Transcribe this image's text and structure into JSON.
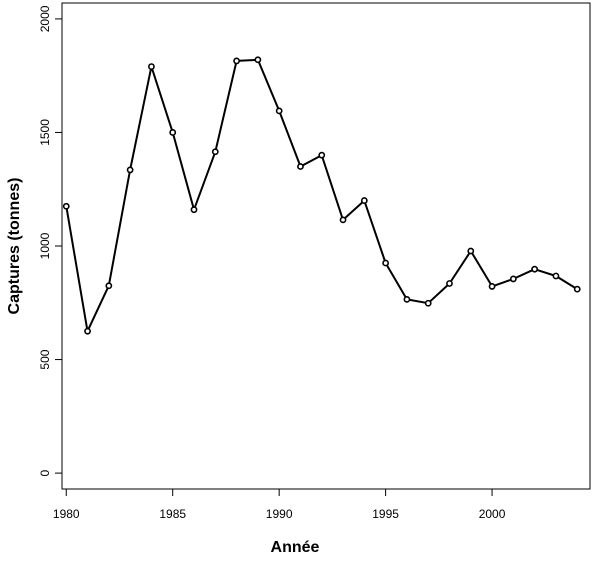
{
  "chart_data": {
    "type": "line",
    "title": "",
    "xlabel": "Année",
    "ylabel": "Captures (tonnes)",
    "xlim": [
      1979.8,
      2004.6
    ],
    "ylim": [
      -70,
      2070
    ],
    "x_ticks": [
      1980,
      1985,
      1990,
      1995,
      2000
    ],
    "y_ticks": [
      0,
      500,
      1000,
      1500,
      2000
    ],
    "grid": false,
    "legend": "none",
    "line_color": "#000000",
    "series": [
      {
        "x": [
          1980,
          1981,
          1982,
          1983,
          1984,
          1985,
          1986,
          1987,
          1988,
          1989,
          1990,
          1991,
          1992,
          1993,
          1994,
          1995,
          1996,
          1997,
          1998,
          1999,
          2000,
          2001,
          2002,
          2003,
          2004
        ],
        "values": [
          1175,
          625,
          825,
          1335,
          1790,
          1500,
          1160,
          1415,
          1815,
          1820,
          1595,
          1350,
          1400,
          1115,
          1200,
          925,
          765,
          748,
          835,
          978,
          822,
          855,
          898,
          868,
          810
        ]
      }
    ]
  }
}
